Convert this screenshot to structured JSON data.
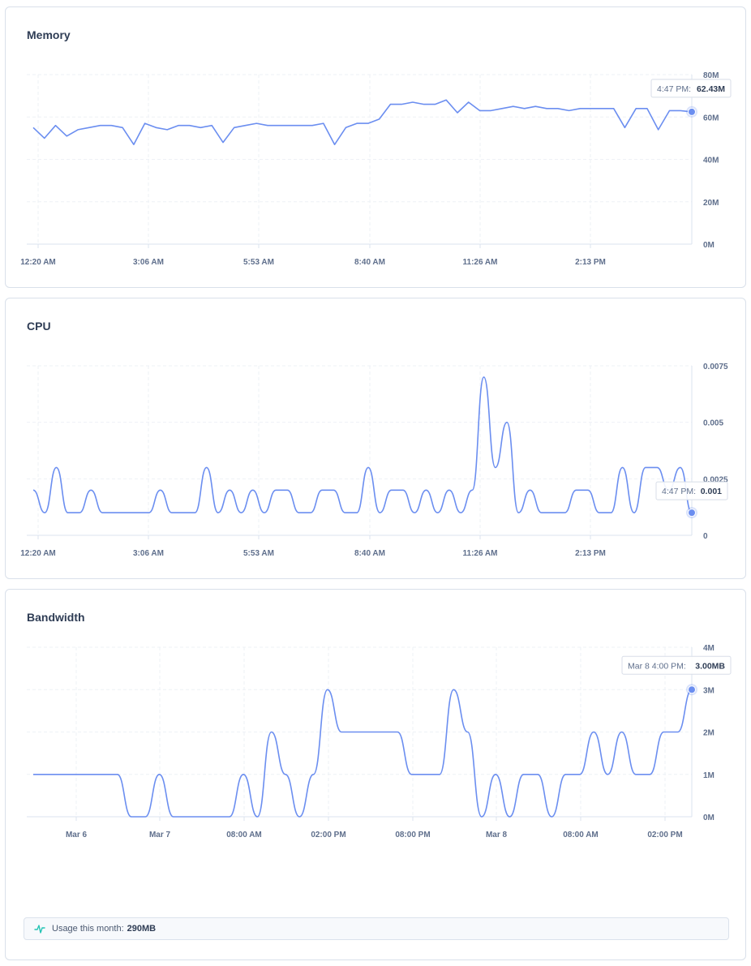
{
  "colors": {
    "line": "#6b8ef0",
    "grid": "#eef1f6",
    "axis": "#dbe3ef",
    "text": "#5f6f8c"
  },
  "usage": {
    "label": "Usage this month:",
    "value": "290MB",
    "icon": "activity-pulse-icon"
  },
  "chart_data": [
    {
      "id": "memory",
      "type": "line",
      "title": "Memory",
      "x_ticks": [
        "12:20 AM",
        "3:06 AM",
        "5:53 AM",
        "8:40 AM",
        "11:26 AM",
        "2:13 PM"
      ],
      "y_ticks": [
        "80M",
        "60M",
        "40M",
        "20M",
        "0M"
      ],
      "ylim": [
        0,
        80
      ],
      "y_unit": "M",
      "grid": true,
      "tooltip": {
        "time": "4:47 PM:",
        "value": "62.43M"
      },
      "series": [
        {
          "x": [
            "12:20 AM",
            "12:30 AM",
            "12:40 AM",
            "1:00 AM",
            "1:20 AM",
            "1:40 AM",
            "2:00 AM",
            "2:20 AM",
            "2:40 AM",
            "2:50 AM",
            "3:00 AM",
            "3:10 AM",
            "3:20 AM",
            "3:40 AM",
            "4:00 AM",
            "4:20 AM",
            "4:40 AM",
            "4:50 AM",
            "5:00 AM",
            "5:20 AM",
            "5:40 AM",
            "6:00 AM",
            "6:20 AM",
            "6:40 AM",
            "7:00 AM",
            "7:20 AM",
            "7:30 AM",
            "7:40 AM",
            "7:50 AM",
            "8:00 AM",
            "8:20 AM",
            "8:40 AM",
            "9:00 AM",
            "9:20 AM",
            "9:40 AM",
            "10:00 AM",
            "10:20 AM",
            "10:40 AM",
            "11:00 AM",
            "11:20 AM",
            "11:30 AM",
            "11:40 AM",
            "12:00 PM",
            "12:20 PM",
            "12:40 PM",
            "1:00 PM",
            "1:20 PM",
            "1:40 PM",
            "2:00 PM",
            "2:20 PM",
            "2:40 PM",
            "3:00 PM",
            "3:20 PM",
            "3:30 PM",
            "3:40 PM",
            "4:00 PM",
            "4:10 PM",
            "4:20 PM",
            "4:30 PM",
            "4:47 PM"
          ],
          "values": [
            55,
            50,
            56,
            51,
            54,
            55,
            56,
            56,
            55,
            47,
            57,
            55,
            54,
            56,
            56,
            55,
            56,
            48,
            55,
            56,
            57,
            56,
            56,
            56,
            56,
            56,
            57,
            47,
            55,
            57,
            57,
            59,
            66,
            66,
            67,
            66,
            66,
            68,
            62,
            67,
            63,
            63,
            64,
            65,
            64,
            65,
            64,
            64,
            63,
            64,
            64,
            64,
            64,
            55,
            64,
            64,
            54,
            63,
            63,
            62.43
          ]
        }
      ]
    },
    {
      "id": "cpu",
      "type": "line",
      "title": "CPU",
      "x_ticks": [
        "12:20 AM",
        "3:06 AM",
        "5:53 AM",
        "8:40 AM",
        "11:26 AM",
        "2:13 PM"
      ],
      "y_ticks": [
        "0.0075",
        "0.005",
        "0.0025",
        "0"
      ],
      "ylim": [
        0,
        0.0075
      ],
      "grid": true,
      "tooltip": {
        "time": "4:47 PM:",
        "value": "0.001"
      },
      "series": [
        {
          "x": [
            "12:20 AM",
            "12:30 AM",
            "12:40 AM",
            "12:50 AM",
            "1:00 AM",
            "1:10 AM",
            "1:20 AM",
            "1:40 AM",
            "2:00 AM",
            "2:20 AM",
            "2:40 AM",
            "2:50 AM",
            "3:00 AM",
            "3:10 AM",
            "3:30 AM",
            "3:40 AM",
            "3:50 AM",
            "4:10 AM",
            "4:30 AM",
            "4:50 AM",
            "5:10 AM",
            "5:30 AM",
            "5:50 AM",
            "6:10 AM",
            "6:30 AM",
            "6:50 AM",
            "7:10 AM",
            "7:30 AM",
            "7:50 AM",
            "8:10 AM",
            "8:30 AM",
            "8:50 AM",
            "9:10 AM",
            "9:30 AM",
            "9:50 AM",
            "10:10 AM",
            "10:30 AM",
            "10:50 AM",
            "11:10 AM",
            "11:20 AM",
            "11:30 AM",
            "11:40 AM",
            "12:00 PM",
            "12:20 PM",
            "12:40 PM",
            "1:00 PM",
            "1:20 PM",
            "1:40 PM",
            "2:00 PM",
            "2:20 PM",
            "2:40 PM",
            "3:00 PM",
            "3:20 PM",
            "3:40 PM",
            "4:00 PM",
            "4:20 PM",
            "4:40 PM",
            "4:47 PM"
          ],
          "values": [
            0.002,
            0.001,
            0.003,
            0.001,
            0.001,
            0.002,
            0.001,
            0.001,
            0.001,
            0.001,
            0.001,
            0.002,
            0.001,
            0.001,
            0.001,
            0.003,
            0.001,
            0.002,
            0.001,
            0.002,
            0.001,
            0.002,
            0.002,
            0.001,
            0.001,
            0.002,
            0.002,
            0.001,
            0.001,
            0.003,
            0.001,
            0.002,
            0.002,
            0.001,
            0.002,
            0.001,
            0.002,
            0.001,
            0.002,
            0.007,
            0.003,
            0.005,
            0.001,
            0.002,
            0.001,
            0.001,
            0.001,
            0.002,
            0.002,
            0.001,
            0.001,
            0.003,
            0.001,
            0.003,
            0.003,
            0.002,
            0.003,
            0.001
          ]
        }
      ]
    },
    {
      "id": "bandwidth",
      "type": "line",
      "title": "Bandwidth",
      "x_ticks": [
        "Mar 6",
        "Mar 7",
        "08:00 AM",
        "02:00 PM",
        "08:00 PM",
        "Mar 8",
        "08:00 AM",
        "02:00 PM"
      ],
      "y_ticks": [
        "4M",
        "3M",
        "2M",
        "1M",
        "0M"
      ],
      "ylim": [
        0,
        4
      ],
      "grid": true,
      "tooltip": {
        "time": "Mar 8 4:00 PM:",
        "value": "3.00MB"
      },
      "series": [
        {
          "values": [
            1,
            1,
            1,
            1,
            1,
            1,
            1,
            0,
            0,
            1,
            0,
            0,
            0,
            0,
            0,
            1,
            0,
            2,
            1,
            0,
            1,
            3,
            2,
            2,
            2,
            2,
            2,
            1,
            1,
            1,
            3,
            2,
            0,
            1,
            0,
            1,
            1,
            0,
            1,
            1,
            2,
            1,
            2,
            1,
            1,
            2,
            2,
            3
          ]
        }
      ]
    }
  ]
}
